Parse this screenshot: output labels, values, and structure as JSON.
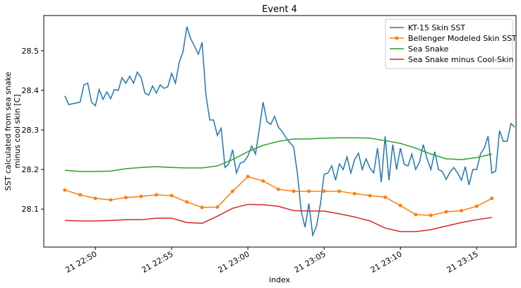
{
  "chart_data": {
    "type": "line",
    "title": "Event 4",
    "xlabel": "index",
    "ylabel": [
      "SST calculated from sea snake",
      "minus cool skin [C]"
    ],
    "xlim": [
      "21 22:46:37",
      "21 23:17:35"
    ],
    "xticks": [
      "21 22:50",
      "21 22:55",
      "21 23:00",
      "21 23:05",
      "21 23:10",
      "21 23:15"
    ],
    "ylim": [
      28.004,
      28.589
    ],
    "yticks": [
      28.1,
      28.2,
      28.3,
      28.4,
      28.5
    ],
    "grid": false,
    "legend": "upper right",
    "series": [
      {
        "name": "KT-15 Skin SST",
        "color": "#1f77b4",
        "marker": false,
        "x": [
          "21 22:48:00",
          "21 22:48:15",
          "21 22:48:30",
          "21 22:48:45",
          "21 22:49:00",
          "21 22:49:15",
          "21 22:49:30",
          "21 22:49:45",
          "21 22:50:00",
          "21 22:50:15",
          "21 22:50:30",
          "21 22:50:45",
          "21 22:51:00",
          "21 22:51:15",
          "21 22:51:30",
          "21 22:51:45",
          "21 22:52:00",
          "21 22:52:15",
          "21 22:52:30",
          "21 22:52:45",
          "21 22:53:00",
          "21 22:53:15",
          "21 22:53:30",
          "21 22:53:45",
          "21 22:54:00",
          "21 22:54:15",
          "21 22:54:30",
          "21 22:54:45",
          "21 22:55:00",
          "21 22:55:15",
          "21 22:55:30",
          "21 22:55:45",
          "21 22:56:00",
          "21 22:56:15",
          "21 22:56:30",
          "21 22:56:45",
          "21 22:57:00",
          "21 22:57:15",
          "21 22:57:30",
          "21 22:57:45",
          "21 22:58:00",
          "21 22:58:15",
          "21 22:58:30",
          "21 22:58:45",
          "21 22:59:00",
          "21 22:59:15",
          "21 22:59:30",
          "21 22:59:45",
          "21 23:00:00",
          "21 23:00:15",
          "21 23:00:30",
          "21 23:00:45",
          "21 23:01:00",
          "21 23:01:15",
          "21 23:01:30",
          "21 23:01:45",
          "21 23:02:00",
          "21 23:02:15",
          "21 23:02:30",
          "21 23:02:45",
          "21 23:03:00",
          "21 23:03:15",
          "21 23:03:30",
          "21 23:03:45",
          "21 23:04:00",
          "21 23:04:15",
          "21 23:04:30",
          "21 23:04:45",
          "21 23:05:00",
          "21 23:05:15",
          "21 23:05:30",
          "21 23:05:45",
          "21 23:06:00",
          "21 23:06:15",
          "21 23:06:30",
          "21 23:06:45",
          "21 23:07:00",
          "21 23:07:15",
          "21 23:07:30",
          "21 23:07:45",
          "21 23:08:00",
          "21 23:08:15",
          "21 23:08:30",
          "21 23:08:45",
          "21 23:09:00",
          "21 23:09:15",
          "21 23:09:30",
          "21 23:09:45",
          "21 23:10:00",
          "21 23:10:15",
          "21 23:10:30",
          "21 23:10:45",
          "21 23:11:00",
          "21 23:11:15",
          "21 23:11:30",
          "21 23:11:45",
          "21 23:12:00",
          "21 23:12:15",
          "21 23:12:30",
          "21 23:12:45",
          "21 23:13:00",
          "21 23:13:15",
          "21 23:13:30",
          "21 23:13:45",
          "21 23:14:00",
          "21 23:14:15",
          "21 23:14:30",
          "21 23:14:45",
          "21 23:15:00",
          "21 23:15:15",
          "21 23:15:30",
          "21 23:15:45",
          "21 23:16:00",
          "21 23:16:15",
          "21 23:16:30",
          "21 23:16:45",
          "21 23:17:00",
          "21 23:17:15",
          "21 23:17:30"
        ],
        "values": [
          28.386,
          28.364,
          28.366,
          28.368,
          28.37,
          28.414,
          28.418,
          28.37,
          28.361,
          28.402,
          28.377,
          28.396,
          28.379,
          28.402,
          28.4,
          28.432,
          28.418,
          28.436,
          28.418,
          28.446,
          28.432,
          28.393,
          28.388,
          28.411,
          28.393,
          28.414,
          28.405,
          28.409,
          28.443,
          28.418,
          28.471,
          28.498,
          28.561,
          28.53,
          28.512,
          28.491,
          28.521,
          28.388,
          28.325,
          28.325,
          28.286,
          28.304,
          28.205,
          28.214,
          28.25,
          28.191,
          28.216,
          28.22,
          28.234,
          28.259,
          28.239,
          28.302,
          28.37,
          28.321,
          28.314,
          28.334,
          28.307,
          28.296,
          28.28,
          28.268,
          28.257,
          28.189,
          28.093,
          28.054,
          28.114,
          28.034,
          28.057,
          28.111,
          28.188,
          28.191,
          28.209,
          28.173,
          28.214,
          28.2,
          28.232,
          28.191,
          28.225,
          28.241,
          28.2,
          28.227,
          28.204,
          28.191,
          28.254,
          28.168,
          28.284,
          28.173,
          28.263,
          28.2,
          28.254,
          28.213,
          28.209,
          28.239,
          28.2,
          28.218,
          28.263,
          28.227,
          28.2,
          28.245,
          28.2,
          28.195,
          28.175,
          28.193,
          28.205,
          28.191,
          28.173,
          28.207,
          28.161,
          28.2,
          28.2,
          28.239,
          28.254,
          28.284,
          28.191,
          28.196,
          28.298,
          28.271,
          28.271,
          28.316,
          28.307
        ]
      },
      {
        "name": "Bellenger Modeled Skin SST",
        "color": "#ff7f0e",
        "marker": true,
        "x": [
          "21 22:48",
          "21 22:49",
          "21 22:50",
          "21 22:51",
          "21 22:52",
          "21 22:53",
          "21 22:54",
          "21 22:55",
          "21 22:56",
          "21 22:57",
          "21 22:58",
          "21 22:59",
          "21 23:00",
          "21 23:01",
          "21 23:02",
          "21 23:03",
          "21 23:04",
          "21 23:05",
          "21 23:06",
          "21 23:07",
          "21 23:08",
          "21 23:09",
          "21 23:10",
          "21 23:11",
          "21 23:12",
          "21 23:13",
          "21 23:14",
          "21 23:15",
          "21 23:16"
        ],
        "values": [
          28.148,
          28.136,
          28.127,
          28.123,
          28.129,
          28.132,
          28.136,
          28.134,
          28.118,
          28.104,
          28.105,
          28.145,
          28.182,
          28.171,
          28.15,
          28.145,
          28.145,
          28.145,
          28.145,
          28.139,
          28.134,
          28.13,
          28.109,
          28.086,
          28.084,
          28.093,
          28.096,
          28.107,
          28.127
        ]
      },
      {
        "name": "Sea Snake",
        "color": "#2ca02c",
        "marker": false,
        "x": [
          "21 22:48",
          "21 22:49",
          "21 22:50",
          "21 22:51",
          "21 22:52",
          "21 22:53",
          "21 22:54",
          "21 22:55",
          "21 22:56",
          "21 22:57",
          "21 22:58",
          "21 22:59",
          "21 23:00",
          "21 23:01",
          "21 23:02",
          "21 23:03",
          "21 23:04",
          "21 23:05",
          "21 23:06",
          "21 23:07",
          "21 23:08",
          "21 23:09",
          "21 23:10",
          "21 23:11",
          "21 23:12",
          "21 23:13",
          "21 23:14",
          "21 23:15",
          "21 23:16"
        ],
        "values": [
          28.198,
          28.195,
          28.195,
          28.196,
          28.202,
          28.205,
          28.207,
          28.205,
          28.204,
          28.204,
          28.209,
          28.225,
          28.245,
          28.261,
          28.271,
          28.277,
          28.277,
          28.279,
          28.28,
          28.28,
          28.279,
          28.273,
          28.266,
          28.254,
          28.239,
          28.227,
          28.225,
          28.23,
          28.239
        ]
      },
      {
        "name": "Sea Snake minus Cool-Skin",
        "color": "#d62728",
        "marker": false,
        "x": [
          "21 22:48",
          "21 22:49",
          "21 22:50",
          "21 22:51",
          "21 22:52",
          "21 22:53",
          "21 22:54",
          "21 22:55",
          "21 22:56",
          "21 22:57",
          "21 22:58",
          "21 22:59",
          "21 23:00",
          "21 23:01",
          "21 23:02",
          "21 23:03",
          "21 23:04",
          "21 23:05",
          "21 23:06",
          "21 23:07",
          "21 23:08",
          "21 23:09",
          "21 23:10",
          "21 23:11",
          "21 23:12",
          "21 23:13",
          "21 23:14",
          "21 23:15",
          "21 23:16"
        ],
        "values": [
          28.071,
          28.07,
          28.07,
          28.071,
          28.073,
          28.073,
          28.077,
          28.077,
          28.066,
          28.064,
          28.082,
          28.102,
          28.112,
          28.111,
          28.107,
          28.096,
          28.095,
          28.095,
          28.088,
          28.08,
          28.07,
          28.052,
          28.043,
          28.043,
          28.048,
          28.057,
          28.066,
          28.073,
          28.079
        ]
      }
    ]
  }
}
